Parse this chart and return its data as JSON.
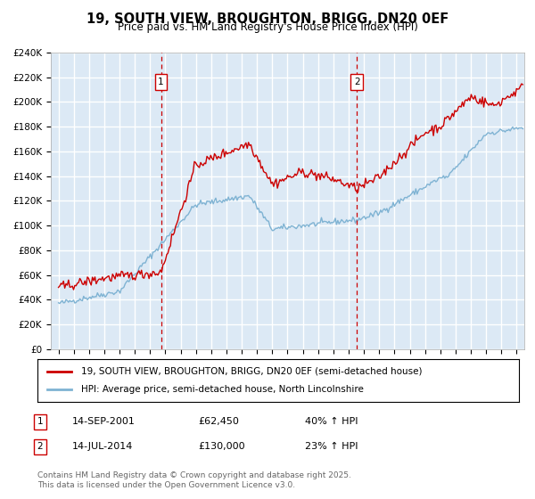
{
  "title": "19, SOUTH VIEW, BROUGHTON, BRIGG, DN20 0EF",
  "subtitle": "Price paid vs. HM Land Registry's House Price Index (HPI)",
  "ylim": [
    0,
    240000
  ],
  "xlim_start": 1994.5,
  "xlim_end": 2025.5,
  "yticks": [
    0,
    20000,
    40000,
    60000,
    80000,
    100000,
    120000,
    140000,
    160000,
    180000,
    200000,
    220000,
    240000
  ],
  "ytick_labels": [
    "£0",
    "£20K",
    "£40K",
    "£60K",
    "£80K",
    "£100K",
    "£120K",
    "£140K",
    "£160K",
    "£180K",
    "£200K",
    "£220K",
    "£240K"
  ],
  "background_color": "#ffffff",
  "plot_bg_color": "#dce9f5",
  "grid_color": "#ffffff",
  "sale1_date": 2001.71,
  "sale1_price": 62450,
  "sale1_label": "1",
  "sale2_date": 2014.54,
  "sale2_price": 130000,
  "sale2_label": "2",
  "legend_line1": "19, SOUTH VIEW, BROUGHTON, BRIGG, DN20 0EF (semi-detached house)",
  "legend_line2": "HPI: Average price, semi-detached house, North Lincolnshire",
  "ann1_box": "1",
  "ann1_date": "14-SEP-2001",
  "ann1_price": "£62,450",
  "ann1_hpi": "40% ↑ HPI",
  "ann2_box": "2",
  "ann2_date": "14-JUL-2014",
  "ann2_price": "£130,000",
  "ann2_hpi": "23% ↑ HPI",
  "footer": "Contains HM Land Registry data © Crown copyright and database right 2025.\nThis data is licensed under the Open Government Licence v3.0.",
  "red_line_color": "#cc0000",
  "blue_line_color": "#7fb3d3",
  "dashed_line_color": "#cc0000"
}
